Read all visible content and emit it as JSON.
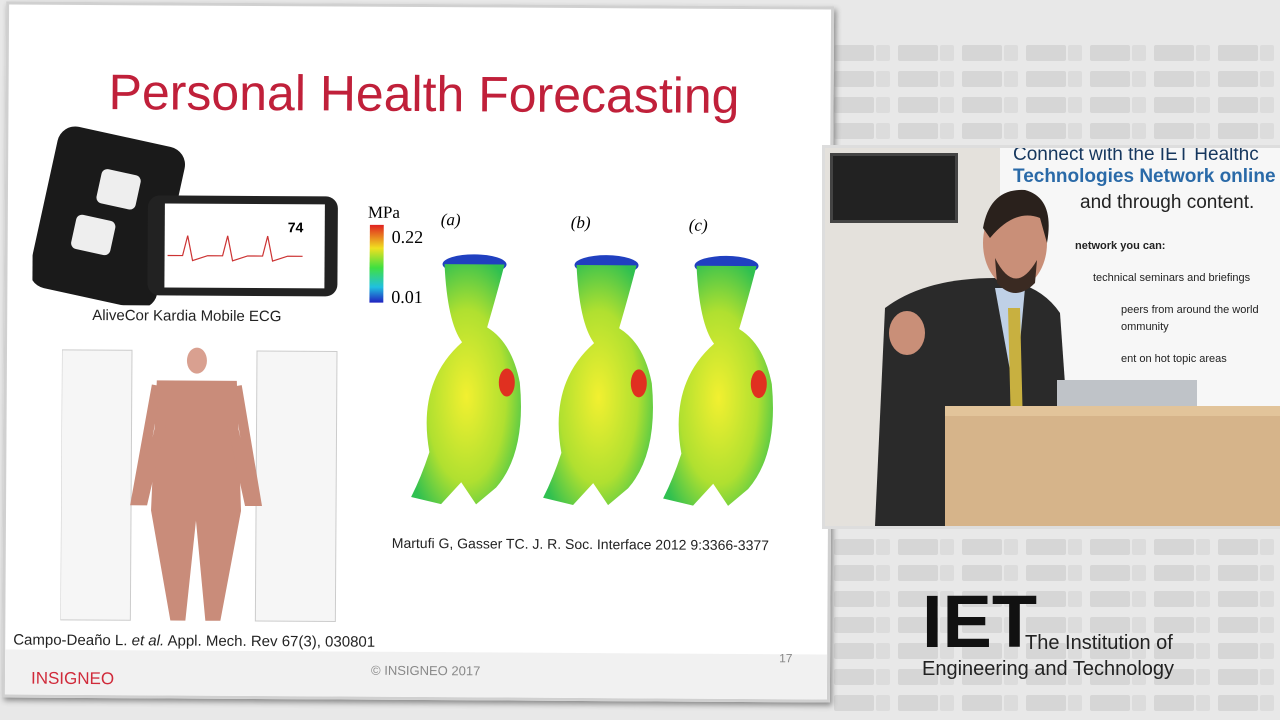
{
  "slide": {
    "title": "Personal Health Forecasting",
    "device_caption": "AliveCor Kardia Mobile ECG",
    "phone_reading": "74",
    "colorbar": {
      "unit": "MPa",
      "max": "0.22",
      "min": "0.01"
    },
    "panels": [
      "(a)",
      "(b)",
      "(c)"
    ],
    "aorta_citation": "Martufi G, Gasser TC. J. R. Soc. Interface 2012 9:3366-3377",
    "citation": {
      "before": "Campo-Deaño L. ",
      "italic": "et al.",
      "after": " Appl. Mech. Rev 67(3), 030801"
    },
    "footer": {
      "copyright": "© INSIGNEO  2017",
      "page": "17",
      "logo": "INSIGNEO"
    }
  },
  "video": {
    "banner": [
      "Connect with the IET Healthc",
      "Technologies Network online",
      "and through content.",
      "network you can:",
      "technical seminars and briefings",
      "peers from around the world",
      "ommunity",
      "ent on hot topic areas"
    ]
  },
  "brand": {
    "logo": "IET",
    "line1": "The Institution of",
    "line2": "Engineering and Technology"
  }
}
